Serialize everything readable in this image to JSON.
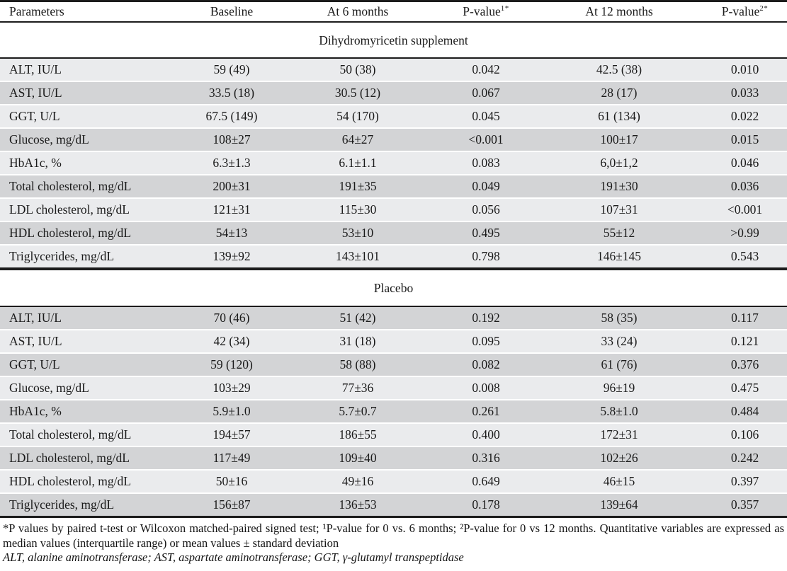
{
  "header": {
    "columns": [
      {
        "label": "Parameters",
        "sup": ""
      },
      {
        "label": "Baseline",
        "sup": ""
      },
      {
        "label": "At 6 months",
        "sup": ""
      },
      {
        "label": "P-value",
        "sup": "1*"
      },
      {
        "label": "At 12 months",
        "sup": ""
      },
      {
        "label": "P-value",
        "sup": "2*"
      }
    ]
  },
  "sections": [
    {
      "title": "Dihydromyricetin supplement",
      "rows": [
        [
          "ALT, IU/L",
          "59 (49)",
          "50 (38)",
          "0.042",
          "42.5 (38)",
          "0.010"
        ],
        [
          "AST, IU/L",
          "33.5 (18)",
          "30.5 (12)",
          "0.067",
          "28 (17)",
          "0.033"
        ],
        [
          "GGT, U/L",
          "67.5 (149)",
          "54 (170)",
          "0.045",
          "61 (134)",
          "0.022"
        ],
        [
          "Glucose, mg/dL",
          "108±27",
          "64±27",
          "<0.001",
          "100±17",
          "0.015"
        ],
        [
          "HbA1c, %",
          "6.3±1.3",
          "6.1±1.1",
          "0.083",
          "6,0±1,2",
          "0.046"
        ],
        [
          "Total cholesterol, mg/dL",
          "200±31",
          "191±35",
          "0.049",
          "191±30",
          "0.036"
        ],
        [
          "LDL cholesterol, mg/dL",
          "121±31",
          "115±30",
          "0.056",
          "107±31",
          "<0.001"
        ],
        [
          "HDL cholesterol, mg/dL",
          "54±13",
          "53±10",
          "0.495",
          "55±12",
          ">0.99"
        ],
        [
          "Triglycerides, mg/dL",
          "139±92",
          "143±101",
          "0.798",
          "146±145",
          "0.543"
        ]
      ]
    },
    {
      "title": "Placebo",
      "rows": [
        [
          "ALT, IU/L",
          "70 (46)",
          "51 (42)",
          "0.192",
          "58 (35)",
          "0.117"
        ],
        [
          "AST, IU/L",
          "42 (34)",
          "31 (18)",
          "0.095",
          "33 (24)",
          "0.121"
        ],
        [
          "GGT, U/L",
          "59 (120)",
          "58 (88)",
          "0.082",
          "61 (76)",
          "0.376"
        ],
        [
          "Glucose, mg/dL",
          "103±29",
          "77±36",
          "0.008",
          "96±19",
          "0.475"
        ],
        [
          "HbA1c, %",
          "5.9±1.0",
          "5.7±0.7",
          "0.261",
          "5.8±1.0",
          "0.484"
        ],
        [
          "Total cholesterol, mg/dL",
          "194±57",
          "186±55",
          "0.400",
          "172±31",
          "0.106"
        ],
        [
          "LDL cholesterol, mg/dL",
          "117±49",
          "109±40",
          "0.316",
          "102±26",
          "0.242"
        ],
        [
          "HDL cholesterol, mg/dL",
          "50±16",
          "49±16",
          "0.649",
          "46±15",
          "0.397"
        ],
        [
          "Triglycerides, mg/dL",
          "156±87",
          "136±53",
          "0.178",
          "139±64",
          "0.357"
        ]
      ]
    }
  ],
  "footnotes": {
    "line1": "*P values by paired t-test or Wilcoxon matched-paired signed test; ¹P-value for 0 vs. 6 months; ²P-value for 0 vs 12 months. Quantitative variables are expressed as median values (interquartile range) or mean values ± standard deviation",
    "line2": "ALT, alanine aminotransferase; AST, aspartate aminotransferase; GGT, γ-glutamyl transpeptidase"
  },
  "colors": {
    "row_light": "#eaebed",
    "row_dark": "#d3d4d6",
    "rule": "#1c1c1c",
    "background": "#ffffff"
  }
}
